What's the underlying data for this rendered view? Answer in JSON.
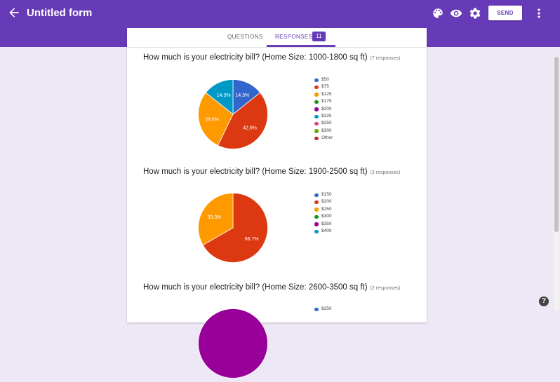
{
  "app": {
    "title": "Untitled form",
    "send_label": "SEND",
    "accent": "#673ab7"
  },
  "icons": {
    "back": "arrow-back-icon",
    "palette": "palette-icon",
    "preview": "eye-icon",
    "settings": "gear-icon",
    "more": "more-vert-icon",
    "help": "help-icon"
  },
  "tabs": {
    "questions": "QUESTIONS",
    "responses": "RESPONSES",
    "responses_count": "11"
  },
  "help_label": "?",
  "questions": [
    {
      "title": "How much is your electricity bill? (Home Size: 1000-1800 sq ft)",
      "responses": "(7 responses)",
      "chart_data": {
        "type": "pie",
        "legend": [
          "$50",
          "$75",
          "$125",
          "$175",
          "$200",
          "$225",
          "$250",
          "$300",
          "Other"
        ],
        "colors": [
          "#3366cc",
          "#dc3912",
          "#ff9900",
          "#109618",
          "#990099",
          "#0099c6",
          "#dd4477",
          "#66aa00",
          "#b82e2e"
        ],
        "slices": [
          {
            "label": "$50",
            "value": 14.3,
            "text": "14.3%",
            "color": "#3366cc"
          },
          {
            "label": "$75",
            "value": 42.9,
            "text": "42.9%",
            "color": "#dc3912"
          },
          {
            "label": "$125",
            "value": 28.6,
            "text": "28.6%",
            "color": "#ff9900"
          },
          {
            "label": "$225",
            "value": 14.3,
            "text": "14.3%",
            "color": "#0099c6"
          }
        ]
      }
    },
    {
      "title": "How much is your electricity bill? (Home Size: 1900-2500 sq ft)",
      "responses": "(3 responses)",
      "chart_data": {
        "type": "pie",
        "legend": [
          "$150",
          "$200",
          "$250",
          "$300",
          "$350",
          "$400"
        ],
        "colors": [
          "#3366cc",
          "#dc3912",
          "#ff9900",
          "#109618",
          "#990099",
          "#0099c6"
        ],
        "slices": [
          {
            "label": "$200",
            "value": 66.7,
            "text": "66.7%",
            "color": "#dc3912"
          },
          {
            "label": "$250",
            "value": 33.3,
            "text": "33.3%",
            "color": "#ff9900"
          }
        ]
      }
    },
    {
      "title": "How much is your electricity bill? (Home Size: 2600-3500 sq ft)",
      "responses": "(2 responses)",
      "chart_data": {
        "type": "pie",
        "legend": [
          "$250"
        ],
        "colors": [
          "#3366cc"
        ],
        "slices": [
          {
            "label": "",
            "value": 100,
            "text": "",
            "color": "#990099"
          }
        ]
      }
    }
  ]
}
